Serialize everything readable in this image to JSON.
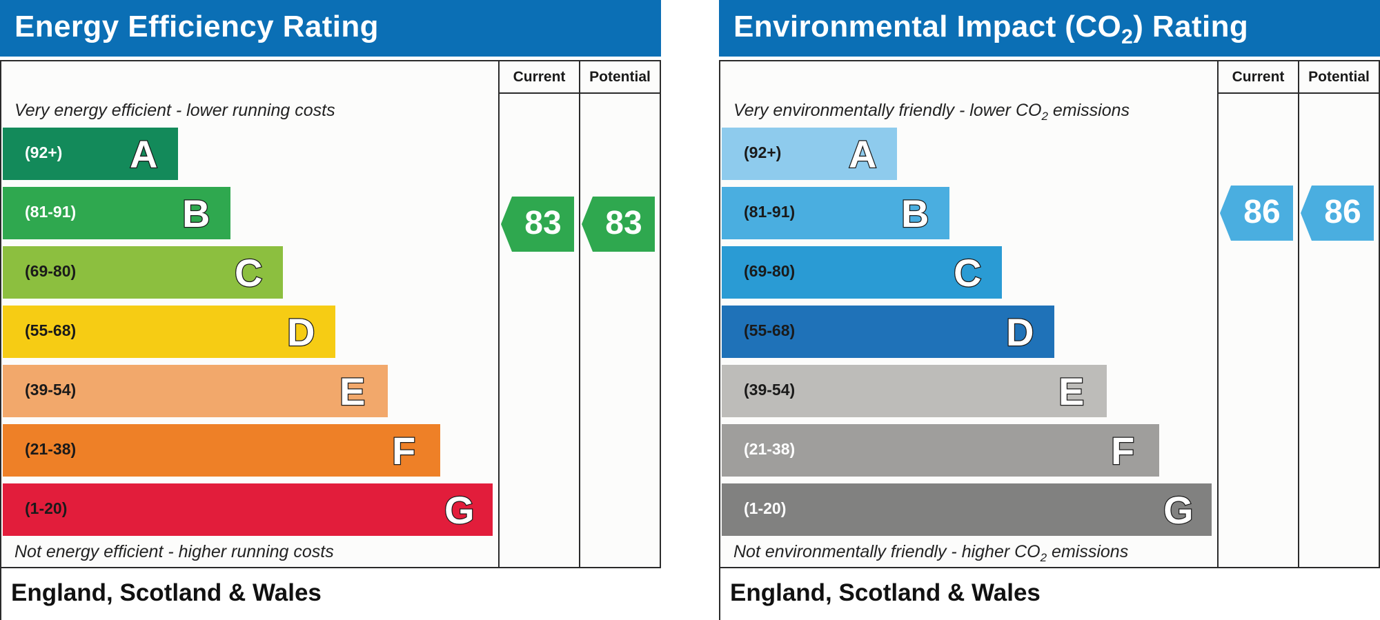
{
  "chart_data": [
    {
      "type": "bar",
      "title": "Energy Efficiency Rating",
      "columns": [
        "Current",
        "Potential"
      ],
      "top_caption": "Very energy efficient - lower running costs",
      "bottom_caption": "Not energy efficient - higher running costs",
      "footer": "England, Scotland & Wales",
      "bands": [
        {
          "range": "(92+)",
          "letter": "A",
          "color": "#138a5a",
          "text_color": "#ffffff"
        },
        {
          "range": "(81-91)",
          "letter": "B",
          "color": "#2fa84f",
          "text_color": "#ffffff"
        },
        {
          "range": "(69-80)",
          "letter": "C",
          "color": "#8cbf3f",
          "text_color": "#1a1a1a"
        },
        {
          "range": "(55-68)",
          "letter": "D",
          "color": "#f6cc14",
          "text_color": "#1a1a1a"
        },
        {
          "range": "(39-54)",
          "letter": "E",
          "color": "#f2a86b",
          "text_color": "#1a1a1a"
        },
        {
          "range": "(21-38)",
          "letter": "F",
          "color": "#ee8027",
          "text_color": "#1a1a1a"
        },
        {
          "range": "(1-20)",
          "letter": "G",
          "color": "#e21d3b",
          "text_color": "#1a1a1a"
        }
      ],
      "current": 83,
      "potential": 83,
      "current_color": "#2fa84f",
      "potential_color": "#2fa84f"
    },
    {
      "type": "bar",
      "title_parts": [
        "Environmental Impact (CO",
        "2",
        ") Rating"
      ],
      "columns": [
        "Current",
        "Potential"
      ],
      "top_caption_parts": [
        "Very environmentally friendly - lower CO",
        "2",
        " emissions"
      ],
      "bottom_caption_parts": [
        "Not environmentally friendly - higher CO",
        "2",
        " emissions"
      ],
      "footer": "England, Scotland & Wales",
      "bands": [
        {
          "range": "(92+)",
          "letter": "A",
          "color": "#8ecbed",
          "text_color": "#1a1a1a"
        },
        {
          "range": "(81-91)",
          "letter": "B",
          "color": "#4aaee0",
          "text_color": "#1a1a1a"
        },
        {
          "range": "(69-80)",
          "letter": "C",
          "color": "#2a9bd4",
          "text_color": "#1a1a1a"
        },
        {
          "range": "(55-68)",
          "letter": "D",
          "color": "#1f72b8",
          "text_color": "#1a1a1a"
        },
        {
          "range": "(39-54)",
          "letter": "E",
          "color": "#bdbcb9",
          "text_color": "#1a1a1a"
        },
        {
          "range": "(21-38)",
          "letter": "F",
          "color": "#9f9e9c",
          "text_color": "#ffffff"
        },
        {
          "range": "(1-20)",
          "letter": "G",
          "color": "#818180",
          "text_color": "#ffffff"
        }
      ],
      "current": 86,
      "potential": 86,
      "current_color": "#4aaee0",
      "potential_color": "#4aaee0"
    }
  ]
}
